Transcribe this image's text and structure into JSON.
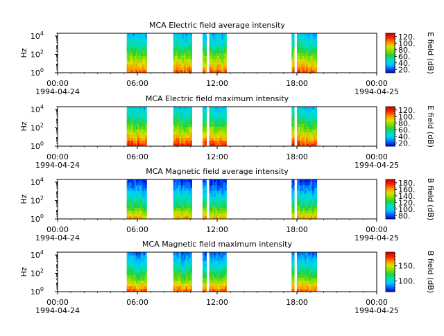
{
  "figure_colors": {
    "background": "#ffffff",
    "gap": "#ffffff",
    "axis": "#000000"
  },
  "colorscale": [
    "#0000cc",
    "#0060ff",
    "#00c8ff",
    "#00e0c0",
    "#20d040",
    "#80e000",
    "#e0e000",
    "#ff9000",
    "#ff2000",
    "#d00000"
  ],
  "chart_data": [
    {
      "type": "heatmap",
      "title": "MCA  Electric field average intensity",
      "ylabel": "Hz",
      "y_scale": "log",
      "ylim": [
        1,
        20000
      ],
      "y_tick_labels": [
        {
          "base": "10",
          "exp": "0"
        },
        {
          "base": "10",
          "exp": "2"
        },
        {
          "base": "10",
          "exp": "4"
        }
      ],
      "xlim_hours": [
        0,
        24
      ],
      "x_tick_labels": [
        "00:00",
        "06:00",
        "12:00",
        "18:00",
        "00:00"
      ],
      "x_date_labels": [
        "1994-04-24",
        "1994-04-25"
      ],
      "colorbar_label": "E field (dB)",
      "colorbar_range": [
        10,
        130
      ],
      "colorbar_ticks": [
        "20.",
        "40.",
        "60.",
        "80.",
        "100.",
        "120."
      ],
      "segments_hours": [
        [
          5.2,
          6.7
        ],
        [
          8.7,
          10.1
        ],
        [
          10.9,
          11.2
        ],
        [
          11.4,
          12.7
        ],
        [
          17.6,
          17.8
        ],
        [
          18.0,
          19.5
        ]
      ],
      "intensity_profile_db": [
        [
          1,
          110
        ],
        [
          30,
          80
        ],
        [
          1000,
          50
        ],
        [
          20000,
          35
        ]
      ]
    },
    {
      "type": "heatmap",
      "title": "MCA  Electric field maximum intensity",
      "ylabel": "Hz",
      "y_scale": "log",
      "ylim": [
        1,
        20000
      ],
      "y_tick_labels": [
        {
          "base": "10",
          "exp": "0"
        },
        {
          "base": "10",
          "exp": "2"
        },
        {
          "base": "10",
          "exp": "4"
        }
      ],
      "xlim_hours": [
        0,
        24
      ],
      "x_tick_labels": [
        "00:00",
        "06:00",
        "12:00",
        "18:00",
        "00:00"
      ],
      "x_date_labels": [
        "1994-04-24",
        "1994-04-25"
      ],
      "colorbar_label": "E field (dB)",
      "colorbar_range": [
        10,
        130
      ],
      "colorbar_ticks": [
        "20.",
        "40.",
        "60.",
        "80.",
        "100.",
        "120."
      ],
      "segments_hours": [
        [
          5.2,
          6.7
        ],
        [
          8.7,
          10.1
        ],
        [
          10.9,
          11.2
        ],
        [
          11.4,
          12.7
        ],
        [
          17.6,
          17.8
        ],
        [
          18.0,
          19.5
        ]
      ],
      "intensity_profile_db": [
        [
          1,
          120
        ],
        [
          30,
          85
        ],
        [
          1000,
          55
        ],
        [
          20000,
          40
        ]
      ]
    },
    {
      "type": "heatmap",
      "title": "MCA  Magnetic field average intensity",
      "ylabel": "Hz",
      "y_scale": "log",
      "ylim": [
        1,
        20000
      ],
      "y_tick_labels": [
        {
          "base": "10",
          "exp": "0"
        },
        {
          "base": "10",
          "exp": "2"
        },
        {
          "base": "10",
          "exp": "4"
        }
      ],
      "xlim_hours": [
        0,
        24
      ],
      "x_tick_labels": [
        "00:00",
        "06:00",
        "12:00",
        "18:00",
        "00:00"
      ],
      "x_date_labels": [
        "1994-04-24",
        "1994-04-25"
      ],
      "colorbar_label": "B field (dB)",
      "colorbar_range": [
        70,
        190
      ],
      "colorbar_ticks": [
        "80.",
        "100.",
        "120.",
        "140.",
        "160.",
        "180."
      ],
      "segments_hours": [
        [
          5.2,
          6.7
        ],
        [
          8.7,
          10.1
        ],
        [
          10.9,
          11.2
        ],
        [
          11.4,
          12.7
        ],
        [
          17.6,
          17.8
        ],
        [
          18.0,
          19.5
        ]
      ],
      "intensity_profile_db": [
        [
          1,
          160
        ],
        [
          30,
          120
        ],
        [
          1000,
          95
        ],
        [
          20000,
          75
        ]
      ]
    },
    {
      "type": "heatmap",
      "title": "MCA  Magnetic field maximum intensity",
      "ylabel": "Hz",
      "y_scale": "log",
      "ylim": [
        1,
        20000
      ],
      "y_tick_labels": [
        {
          "base": "10",
          "exp": "0"
        },
        {
          "base": "10",
          "exp": "2"
        },
        {
          "base": "10",
          "exp": "4"
        }
      ],
      "xlim_hours": [
        0,
        24
      ],
      "x_tick_labels": [
        "00:00",
        "06:00",
        "12:00",
        "18:00",
        "00:00"
      ],
      "x_date_labels": [
        "1994-04-24",
        "1994-04-25"
      ],
      "colorbar_label": "B field (dB)",
      "colorbar_range": [
        65,
        195
      ],
      "colorbar_ticks": [
        "100.",
        "150."
      ],
      "segments_hours": [
        [
          5.2,
          6.7
        ],
        [
          8.7,
          10.1
        ],
        [
          10.9,
          11.2
        ],
        [
          11.4,
          12.7
        ],
        [
          17.6,
          17.8
        ],
        [
          18.0,
          19.5
        ]
      ],
      "intensity_profile_db": [
        [
          1,
          175
        ],
        [
          30,
          130
        ],
        [
          1000,
          100
        ],
        [
          20000,
          80
        ]
      ]
    }
  ]
}
